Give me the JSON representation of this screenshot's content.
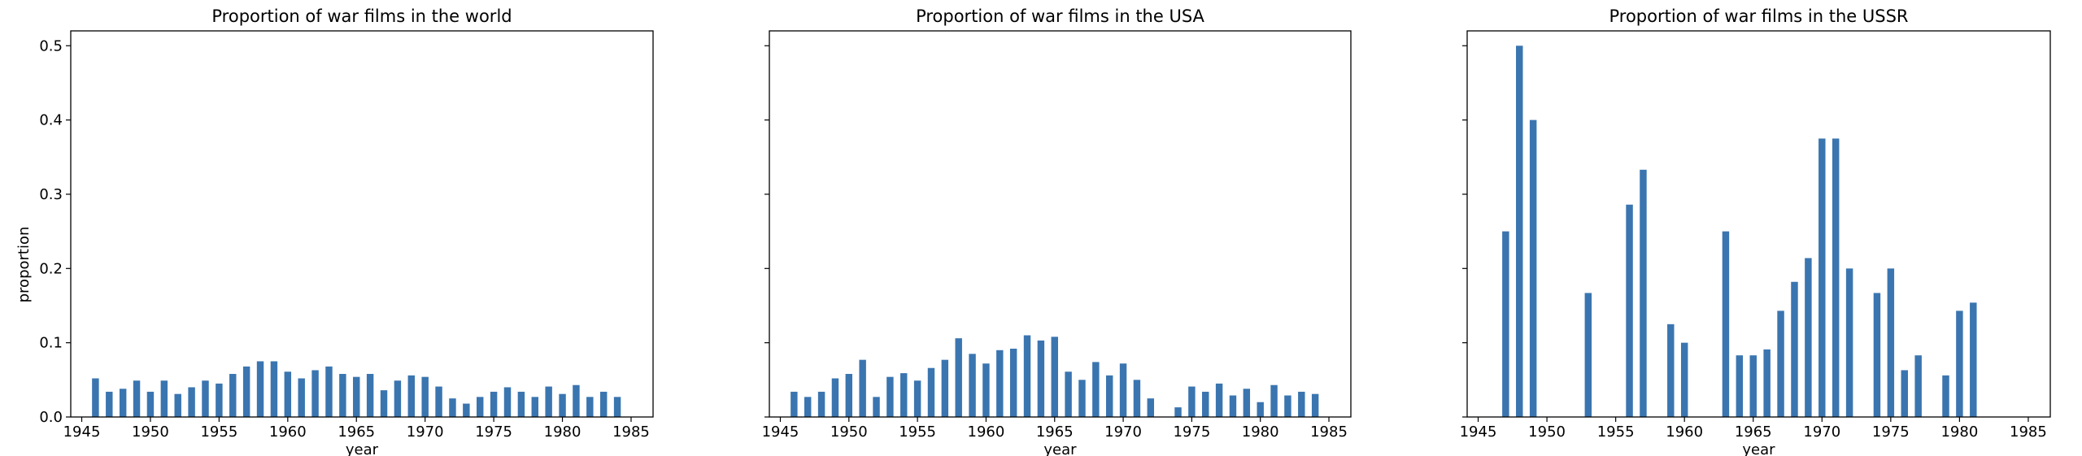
{
  "colors": {
    "bar": "#3a75b0",
    "axis": "#000000",
    "background": "#ffffff"
  },
  "chart_data": [
    {
      "type": "bar",
      "title": "Proportion of war films in the world",
      "xlabel": "year",
      "ylabel": "proportion",
      "xlim": [
        1944.2,
        1986.6
      ],
      "ylim": [
        0,
        0.52
      ],
      "xticks": [
        1945,
        1950,
        1955,
        1960,
        1965,
        1970,
        1975,
        1980,
        1985
      ],
      "yticks": [
        0.0,
        0.1,
        0.2,
        0.3,
        0.4,
        0.5
      ],
      "ytick_labels": [
        "0.0",
        "0.1",
        "0.2",
        "0.3",
        "0.4",
        "0.5"
      ],
      "show_ytick_labels": true,
      "x": [
        1946,
        1947,
        1948,
        1949,
        1950,
        1951,
        1952,
        1953,
        1954,
        1955,
        1956,
        1957,
        1958,
        1959,
        1960,
        1961,
        1962,
        1963,
        1964,
        1965,
        1966,
        1967,
        1968,
        1969,
        1970,
        1971,
        1972,
        1973,
        1974,
        1975,
        1976,
        1977,
        1978,
        1979,
        1980,
        1981,
        1982,
        1983,
        1984
      ],
      "values": [
        0.052,
        0.034,
        0.038,
        0.049,
        0.034,
        0.049,
        0.031,
        0.04,
        0.049,
        0.045,
        0.058,
        0.068,
        0.075,
        0.075,
        0.061,
        0.052,
        0.063,
        0.068,
        0.058,
        0.054,
        0.058,
        0.036,
        0.049,
        0.056,
        0.054,
        0.041,
        0.025,
        0.018,
        0.027,
        0.034,
        0.04,
        0.034,
        0.027,
        0.041,
        0.031,
        0.043,
        0.027,
        0.034,
        0.027
      ]
    },
    {
      "type": "bar",
      "title": "Proportion of war films in the USA",
      "xlabel": "year",
      "ylabel": "",
      "xlim": [
        1944.2,
        1986.6
      ],
      "ylim": [
        0,
        0.52
      ],
      "xticks": [
        1945,
        1950,
        1955,
        1960,
        1965,
        1970,
        1975,
        1980,
        1985
      ],
      "yticks": [
        0.0,
        0.1,
        0.2,
        0.3,
        0.4,
        0.5
      ],
      "ytick_labels": [],
      "show_ytick_labels": false,
      "x": [
        1946,
        1947,
        1948,
        1949,
        1950,
        1951,
        1952,
        1953,
        1954,
        1955,
        1956,
        1957,
        1958,
        1959,
        1960,
        1961,
        1962,
        1963,
        1964,
        1965,
        1966,
        1967,
        1968,
        1969,
        1970,
        1971,
        1972,
        1974,
        1975,
        1976,
        1977,
        1978,
        1979,
        1980,
        1981,
        1982,
        1983,
        1984
      ],
      "values": [
        0.034,
        0.027,
        0.034,
        0.052,
        0.058,
        0.077,
        0.027,
        0.054,
        0.059,
        0.049,
        0.066,
        0.077,
        0.106,
        0.085,
        0.072,
        0.09,
        0.092,
        0.11,
        0.103,
        0.108,
        0.061,
        0.05,
        0.074,
        0.056,
        0.072,
        0.05,
        0.025,
        0.013,
        0.041,
        0.034,
        0.045,
        0.029,
        0.038,
        0.02,
        0.043,
        0.029,
        0.034,
        0.031
      ]
    },
    {
      "type": "bar",
      "title": "Proportion of war films in the USSR",
      "xlabel": "year",
      "ylabel": "",
      "xlim": [
        1944.2,
        1986.6
      ],
      "ylim": [
        0,
        0.52
      ],
      "xticks": [
        1945,
        1950,
        1955,
        1960,
        1965,
        1970,
        1975,
        1980,
        1985
      ],
      "yticks": [
        0.0,
        0.1,
        0.2,
        0.3,
        0.4,
        0.5
      ],
      "ytick_labels": [],
      "show_ytick_labels": false,
      "x": [
        1947,
        1948,
        1949,
        1953,
        1956,
        1957,
        1959,
        1960,
        1963,
        1964,
        1965,
        1966,
        1967,
        1968,
        1969,
        1970,
        1971,
        1972,
        1974,
        1975,
        1976,
        1977,
        1979,
        1980,
        1981
      ],
      "values": [
        0.25,
        0.5,
        0.4,
        0.167,
        0.286,
        0.333,
        0.125,
        0.1,
        0.25,
        0.083,
        0.083,
        0.091,
        0.143,
        0.182,
        0.214,
        0.375,
        0.375,
        0.2,
        0.167,
        0.2,
        0.063,
        0.083,
        0.056,
        0.143,
        0.154
      ]
    }
  ]
}
